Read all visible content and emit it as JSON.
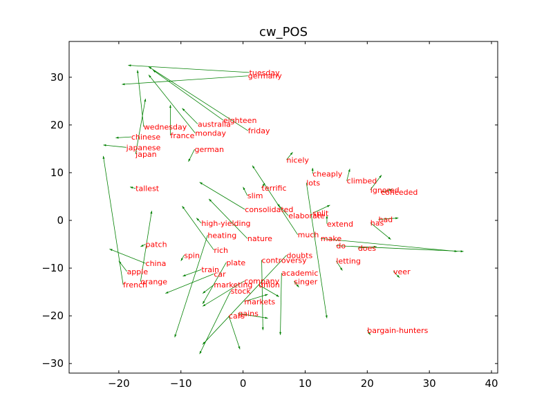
{
  "chart_data": {
    "type": "scatter",
    "title": "cw_POS",
    "xlabel": "",
    "ylabel": "",
    "xlim": [
      -28,
      41
    ],
    "ylim": [
      -32,
      37.5
    ],
    "xticks": [
      -20,
      -10,
      0,
      10,
      20,
      30,
      40
    ],
    "yticks": [
      -30,
      -20,
      -10,
      0,
      10,
      20,
      30
    ],
    "grid": false,
    "colors": {
      "label": "#ff0000",
      "arrow": "#008000",
      "axes": "#000000"
    },
    "points": [
      {
        "label": "tuesday",
        "x": 1.0,
        "y": 31.0,
        "x0": -18.5,
        "y0": 32.5
      },
      {
        "label": "germany",
        "x": 0.8,
        "y": 30.3,
        "x0": -19.5,
        "y0": 28.5
      },
      {
        "label": "eighteen",
        "x": -3.2,
        "y": 21.0,
        "x0": -14.5,
        "y0": 31.5
      },
      {
        "label": "australia",
        "x": -7.3,
        "y": 20.2,
        "x0": -9.8,
        "y0": 23.5
      },
      {
        "label": "friday",
        "x": 0.8,
        "y": 18.8,
        "x0": -15.2,
        "y0": 32.2
      },
      {
        "label": "wednesday",
        "x": -16.0,
        "y": 19.6,
        "x0": -17.0,
        "y0": 31.5
      },
      {
        "label": "monday",
        "x": -7.7,
        "y": 18.3,
        "x0": -15.2,
        "y0": 30.5
      },
      {
        "label": "chinese",
        "x": -18.0,
        "y": 17.5,
        "x0": -20.5,
        "y0": 17.3
      },
      {
        "label": "france",
        "x": -11.7,
        "y": 17.8,
        "x0": -11.7,
        "y0": 24.2
      },
      {
        "label": "japanese",
        "x": -18.8,
        "y": 15.3,
        "x0": -22.5,
        "y0": 15.8
      },
      {
        "label": "german",
        "x": -7.8,
        "y": 14.9,
        "x0": -8.8,
        "y0": 12.3
      },
      {
        "label": "japan",
        "x": -17.3,
        "y": 13.9,
        "x0": -15.7,
        "y0": 25.5
      },
      {
        "label": "nicely",
        "x": 7.0,
        "y": 12.7,
        "x0": 8.0,
        "y0": 14.3
      },
      {
        "label": "cheaply",
        "x": 11.2,
        "y": 9.8,
        "x0": 11.2,
        "y0": 11.0
      },
      {
        "label": "climbed",
        "x": 16.7,
        "y": 8.3,
        "x0": 17.2,
        "y0": 10.8
      },
      {
        "label": "lots",
        "x": 10.2,
        "y": 7.9,
        "x0": 13.5,
        "y0": -20.5
      },
      {
        "label": "ignored",
        "x": 20.5,
        "y": 6.4,
        "x0": 22.3,
        "y0": 9.5
      },
      {
        "label": "conceded",
        "x": 22.2,
        "y": 5.9,
        "x0": 24.0,
        "y0": 6.5
      },
      {
        "label": "tallest",
        "x": -17.3,
        "y": 6.7,
        "x0": -18.2,
        "y0": 7.0
      },
      {
        "label": "terrific",
        "x": 3.0,
        "y": 6.8,
        "x0": 3.5,
        "y0": 7.8
      },
      {
        "label": "slim",
        "x": 0.7,
        "y": 5.2,
        "x0": 0.0,
        "y0": 7.0
      },
      {
        "label": "consolidated",
        "x": 0.3,
        "y": 2.3,
        "x0": -7.0,
        "y0": 8.0
      },
      {
        "label": "split",
        "x": 11.2,
        "y": 1.5,
        "x0": 14.0,
        "y0": 3.2
      },
      {
        "label": "elaborate",
        "x": 7.3,
        "y": 1.0,
        "x0": 5.5,
        "y0": 3.5
      },
      {
        "label": "had",
        "x": 21.8,
        "y": 0.2,
        "x0": 25.0,
        "y0": 0.5
      },
      {
        "label": "has",
        "x": 20.5,
        "y": -0.5,
        "x0": 23.8,
        "y0": -4.0
      },
      {
        "label": "extend",
        "x": 13.5,
        "y": -0.7,
        "x0": 13.5,
        "y0": 1.0
      },
      {
        "label": "high-yielding",
        "x": -6.7,
        "y": -0.6,
        "x0": -7.5,
        "y0": 0.5
      },
      {
        "label": "heating",
        "x": -5.7,
        "y": -3.1,
        "x0": -11.0,
        "y0": -24.5
      },
      {
        "label": "much",
        "x": 8.8,
        "y": -3.0,
        "x0": 1.5,
        "y0": 11.5
      },
      {
        "label": "nature",
        "x": 0.7,
        "y": -3.8,
        "x0": -5.5,
        "y0": 4.5
      },
      {
        "label": "make",
        "x": 12.5,
        "y": -3.8,
        "x0": 34.5,
        "y0": -6.5
      },
      {
        "label": "patch",
        "x": -15.7,
        "y": -5.0,
        "x0": -16.5,
        "y0": -5.5
      },
      {
        "label": "do",
        "x": 15.0,
        "y": -5.3,
        "x0": 35.5,
        "y0": -6.5
      },
      {
        "label": "does",
        "x": 18.5,
        "y": -5.8,
        "x0": 21.5,
        "y0": -5.5
      },
      {
        "label": "rich",
        "x": -4.7,
        "y": -6.2,
        "x0": -9.8,
        "y0": 3.0
      },
      {
        "label": "spin",
        "x": -9.5,
        "y": -7.3,
        "x0": -10.0,
        "y0": -8.5
      },
      {
        "label": "doubts",
        "x": 7.0,
        "y": -7.3,
        "x0": -6.5,
        "y0": -26.0
      },
      {
        "label": "controversy",
        "x": 3.0,
        "y": -8.3,
        "x0": 3.2,
        "y0": -23.0
      },
      {
        "label": "plate",
        "x": -2.7,
        "y": -8.8,
        "x0": -6.5,
        "y0": -17.5
      },
      {
        "label": "china",
        "x": -15.7,
        "y": -9.0,
        "x0": -21.5,
        "y0": -6.0
      },
      {
        "label": "letting",
        "x": 15.0,
        "y": -8.5,
        "x0": 16.0,
        "y0": -10.5
      },
      {
        "label": "train",
        "x": -6.7,
        "y": -10.3,
        "x0": -9.7,
        "y0": -11.7
      },
      {
        "label": "apple",
        "x": -18.7,
        "y": -10.7,
        "x0": -20.0,
        "y0": -8.5
      },
      {
        "label": "car",
        "x": -4.7,
        "y": -11.2,
        "x0": -12.5,
        "y0": -15.3
      },
      {
        "label": "academic",
        "x": 6.2,
        "y": -11.0,
        "x0": 6.0,
        "y0": -24.0
      },
      {
        "label": "veer",
        "x": 24.2,
        "y": -10.7,
        "x0": 25.2,
        "y0": -12.0
      },
      {
        "label": "orange",
        "x": -16.5,
        "y": -12.8,
        "x0": -14.7,
        "y0": 2.0
      },
      {
        "label": "company",
        "x": 0.2,
        "y": -12.7,
        "x0": -6.5,
        "y0": -18.0
      },
      {
        "label": "singer",
        "x": 8.2,
        "y": -12.8,
        "x0": 9.0,
        "y0": -14.0
      },
      {
        "label": "french",
        "x": -19.3,
        "y": -13.5,
        "x0": -22.5,
        "y0": 13.5
      },
      {
        "label": "marketing",
        "x": -4.7,
        "y": -13.5,
        "x0": -6.5,
        "y0": -15.3
      },
      {
        "label": "union",
        "x": 2.5,
        "y": -13.5,
        "x0": 5.8,
        "y0": -16.0
      },
      {
        "label": "stock",
        "x": -2.0,
        "y": -14.8,
        "x0": -7.0,
        "y0": -28.0
      },
      {
        "label": "markets",
        "x": 0.2,
        "y": -17.0,
        "x0": 4.0,
        "y0": -15.5
      },
      {
        "label": "bargain-hunters",
        "x": 20.0,
        "y": -23.0,
        "x0": 20.5,
        "y0": -24.0
      },
      {
        "label": "cars",
        "x": -2.3,
        "y": -20.0,
        "x0": -0.5,
        "y0": -27.0
      },
      {
        "label": "gains",
        "x": -0.8,
        "y": -19.5,
        "x0": 4.0,
        "y0": -20.5
      }
    ]
  }
}
